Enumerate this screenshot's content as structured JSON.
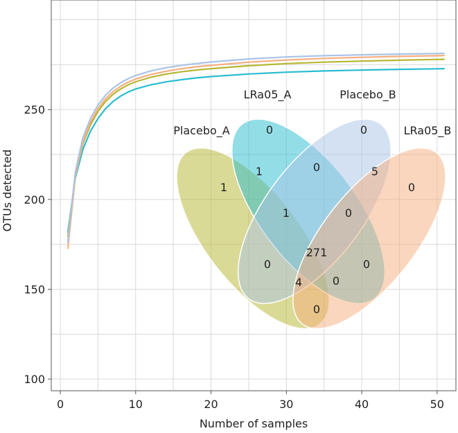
{
  "chart_data": {
    "type": "line",
    "xlabel": "Number of samples",
    "ylabel": "OTUs detected",
    "xlim": [
      -1.2,
      52.5
    ],
    "ylim": [
      93.5,
      311
    ],
    "xticks": [
      0,
      10,
      20,
      30,
      40,
      50
    ],
    "yticks": [
      100,
      150,
      200,
      250
    ],
    "grid": true,
    "x": [
      1,
      2,
      3,
      4,
      5,
      6,
      7,
      8,
      9,
      10,
      12,
      14,
      16,
      18,
      20,
      25,
      30,
      35,
      40,
      45,
      50,
      51
    ],
    "series": [
      {
        "name": "LRa05_A",
        "color": "#27bcd0",
        "values": [
          181.5,
          212,
          228,
          238,
          245,
          250.5,
          254.5,
          257.5,
          259.8,
          261.5,
          263.8,
          265.4,
          266.6,
          267.6,
          268.4,
          269.8,
          270.8,
          271.5,
          272.0,
          272.4,
          272.7,
          272.8
        ]
      },
      {
        "name": "Placebo_A",
        "color": "#b6b630",
        "values": [
          179,
          214,
          231,
          241.5,
          249,
          254.5,
          258.5,
          261.5,
          263.8,
          265.5,
          268,
          269.7,
          271,
          272,
          272.8,
          274.4,
          275.6,
          276.4,
          277,
          277.5,
          277.9,
          278
        ]
      },
      {
        "name": "LRa05_B",
        "color": "#f5ae7e",
        "values": [
          172.5,
          213,
          232,
          243,
          250.5,
          256,
          260,
          263,
          265.3,
          267,
          269.5,
          271.3,
          272.7,
          273.8,
          274.6,
          276.4,
          277.6,
          278.5,
          279.1,
          279.6,
          280.0,
          280.1
        ]
      },
      {
        "name": "Placebo_B",
        "color": "#a9c3e6",
        "values": [
          176,
          215.5,
          234.5,
          245,
          252.5,
          258,
          262,
          264.9,
          267.2,
          269,
          271.5,
          273.3,
          274.6,
          275.6,
          276.5,
          278.2,
          279.3,
          280.0,
          280.5,
          280.9,
          281.2,
          281.3
        ]
      }
    ],
    "venn": {
      "sets": [
        {
          "name": "Placebo_A",
          "color": "#b6b630"
        },
        {
          "name": "LRa05_A",
          "color": "#27bcd0"
        },
        {
          "name": "Placebo_B",
          "color": "#a9c3e6"
        },
        {
          "name": "LRa05_B",
          "color": "#f5ae7e"
        }
      ],
      "counts": {
        "Placebo_A_only": "1",
        "LRa05_A_only": "0",
        "Placebo_B_only": "0",
        "LRa05_B_only": "0",
        "Placebo_A&LRa05_A": "1",
        "LRa05_A&Placebo_B": "0",
        "Placebo_B&LRa05_B": "5",
        "Placebo_A&LRa05_A&Placebo_B": "1",
        "LRa05_A&Placebo_B&LRa05_B": "0",
        "all_four": "271",
        "Placebo_A&Placebo_B": "0",
        "LRa05_A&LRa05_B": "0",
        "Placebo_A&Placebo_B&LRa05_B": "4",
        "Placebo_A&LRa05_A&LRa05_B": "0",
        "Placebo_A&LRa05_B": "0"
      }
    }
  }
}
